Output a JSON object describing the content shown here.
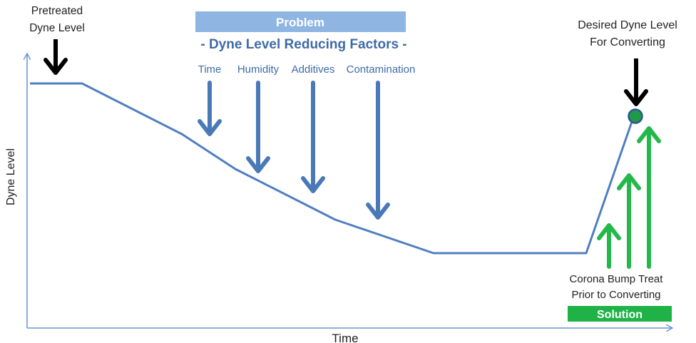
{
  "axes": {
    "x_label": "Time",
    "y_label": "Dyne Level"
  },
  "pretreated": {
    "line1": "Pretreated",
    "line2": "Dyne Level"
  },
  "problem": {
    "banner": "Problem",
    "subtitle": "- Dyne Level Reducing Factors -",
    "factors": [
      "Time",
      "Humidity",
      "Additives",
      "Contamination"
    ]
  },
  "desired": {
    "line1": "Desired Dyne Level",
    "line2": "For Converting"
  },
  "corona": {
    "line1": "Corona Bump Treat",
    "line2": "Prior to Converting"
  },
  "solution": {
    "banner": "Solution"
  },
  "colors": {
    "axis": "#6a98d0",
    "curve": "#4f7fc0",
    "problem_banner": "#8fb5e3",
    "problem_text": "#3e6aa8",
    "down_arrow": "#4a79b7",
    "up_arrow": "#22b84a",
    "solution_banner": "#1fb347",
    "target_dot": "#1f9a46",
    "black": "#000000"
  }
}
